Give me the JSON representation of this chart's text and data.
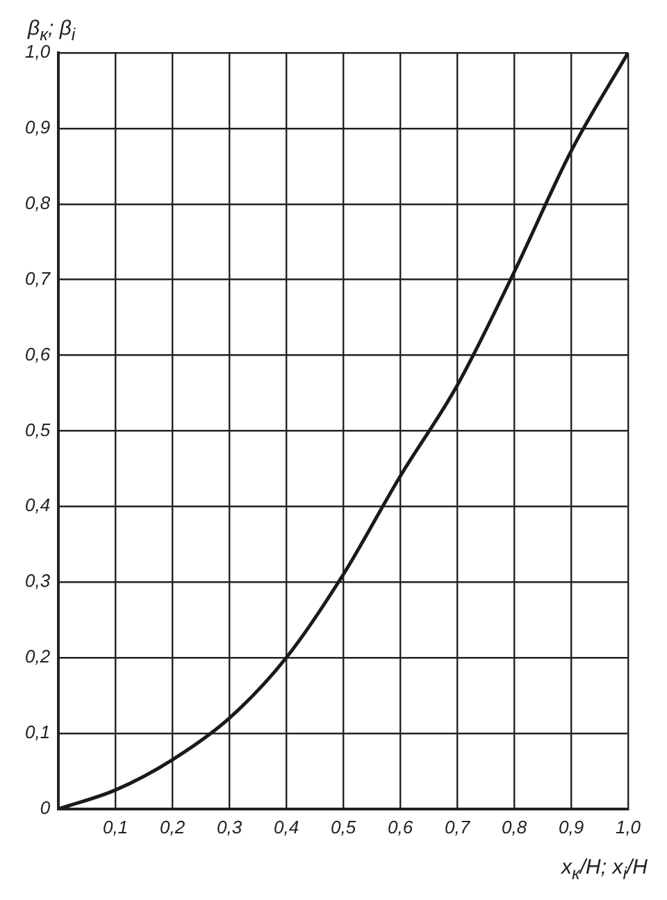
{
  "chart_data": {
    "type": "line",
    "xlabel": "x$_{к}$/H; x$_{i}$/H",
    "ylabel": "β$_{к}$; β$_{i}$",
    "x": [
      0,
      0.1,
      0.2,
      0.3,
      0.4,
      0.5,
      0.6,
      0.7,
      0.8,
      0.9,
      1.0
    ],
    "series": [
      {
        "color": "#1a1a1a",
        "values": [
          0,
          0.025,
          0.065,
          0.12,
          0.2,
          0.31,
          0.44,
          0.56,
          0.71,
          0.87,
          1.0
        ]
      }
    ],
    "xlim": [
      0,
      1.0
    ],
    "ylim": [
      0,
      1.0
    ],
    "xticks": [
      {
        "value": 0,
        "label": null
      },
      {
        "value": 0.1,
        "label": "0,1"
      },
      {
        "value": 0.2,
        "label": "0,2"
      },
      {
        "value": 0.3,
        "label": "0,3"
      },
      {
        "value": 0.4,
        "label": "0,4"
      },
      {
        "value": 0.5,
        "label": "0,5"
      },
      {
        "value": 0.6,
        "label": "0,6"
      },
      {
        "value": 0.7,
        "label": "0,7"
      },
      {
        "value": 0.8,
        "label": "0,8"
      },
      {
        "value": 0.9,
        "label": "0,9"
      },
      {
        "value": 1.0,
        "label": "1,0"
      }
    ],
    "yticks": [
      0,
      {
        "value": 0.1,
        "label": "0,1"
      },
      {
        "value": 0.2,
        "label": "0,2"
      },
      {
        "value": 0.3,
        "label": "0,3"
      },
      {
        "value": 0.4,
        "label": "0,4"
      },
      {
        "value": 0.5,
        "label": "0,5"
      },
      {
        "value": 0.6,
        "label": "0,6"
      },
      {
        "value": 0.7,
        "label": "0,7"
      },
      {
        "value": 0.8,
        "label": "0,8"
      },
      {
        "value": 0.9,
        "label": "0,9"
      },
      {
        "value": 1.0,
        "label": "1,0"
      }
    ],
    "grid": true,
    "marker": "none",
    "line_style": "solid",
    "legend": false
  }
}
